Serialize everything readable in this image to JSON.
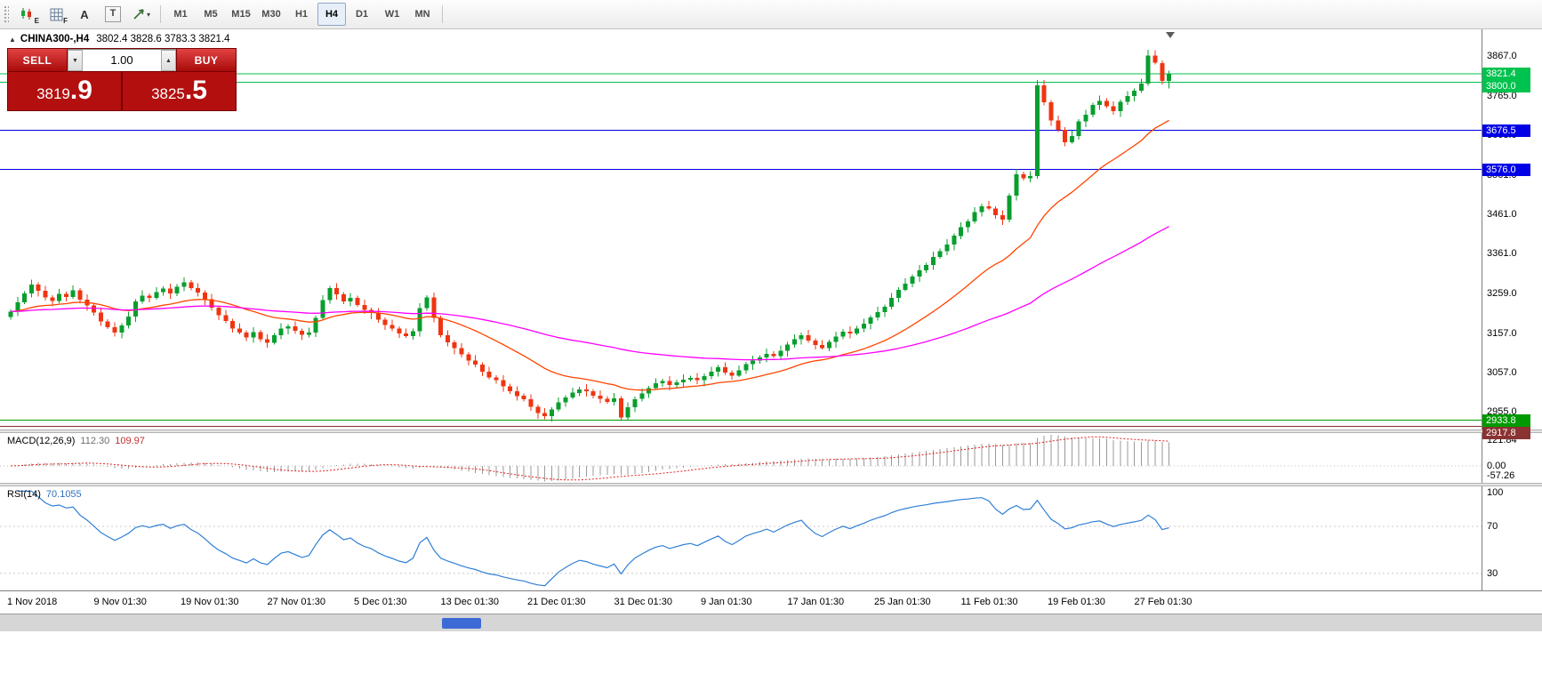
{
  "toolbar": {
    "tools": [
      {
        "name": "candles-tool",
        "badge": "E"
      },
      {
        "name": "grid-tool",
        "badge": "F"
      },
      {
        "name": "font-tool",
        "label": "A"
      },
      {
        "name": "text-tool",
        "label": "T"
      },
      {
        "name": "cursor-tool"
      }
    ],
    "timeframes": [
      {
        "label": "M1"
      },
      {
        "label": "M5"
      },
      {
        "label": "M15"
      },
      {
        "label": "M30"
      },
      {
        "label": "H1"
      },
      {
        "label": "H4",
        "selected": true
      },
      {
        "label": "D1"
      },
      {
        "label": "W1"
      },
      {
        "label": "MN"
      }
    ]
  },
  "icons": {
    "one_click_toggle": "▲",
    "vol_down": "▼",
    "vol_up": "▲",
    "cursor_caret": "▾"
  },
  "symbol_line": {
    "symbol": "CHINA300-,H4",
    "ohlc": "3802.4 3828.6 3783.3 3821.4"
  },
  "one_click": {
    "sell_label": "SELL",
    "buy_label": "BUY",
    "volume": "1.00",
    "sell_price": {
      "main": "3819",
      "big": ".9"
    },
    "buy_price": {
      "main": "3825",
      "big": ".5"
    }
  },
  "price_axis": {
    "labels": [
      {
        "text": "3867.0",
        "price": 3867.0
      },
      {
        "text": "3765.0",
        "price": 3765.0
      },
      {
        "text": "3663.0",
        "price": 3663.0
      },
      {
        "text": "3561.0",
        "price": 3561.0
      },
      {
        "text": "3461.0",
        "price": 3461.0
      },
      {
        "text": "3361.0",
        "price": 3361.0
      },
      {
        "text": "3259.0",
        "price": 3259.0
      },
      {
        "text": "3157.0",
        "price": 3157.0
      },
      {
        "text": "3057.0",
        "price": 3057.0
      },
      {
        "text": "2955.0",
        "price": 2955.0
      }
    ]
  },
  "macd_panel": {
    "title": "MACD(12,26,9)",
    "value_main": "112.30",
    "value_signal": "109.97",
    "axis_top": "121.84",
    "axis_zero": "0.00",
    "axis_bottom": "-57.26"
  },
  "rsi_panel": {
    "title": "RSI(14)",
    "value": "70.1055",
    "axis": [
      100,
      70,
      30
    ]
  },
  "chart_data": {
    "type": "candlestick",
    "title": "CHINA300-,H4",
    "symbol": "CHINA300-",
    "period": "H4",
    "last_ohlc": {
      "open": 3802.4,
      "high": 3828.6,
      "low": 3783.3,
      "close": 3821.4
    },
    "ylim": [
      2910,
      3935
    ],
    "x_labels": [
      "1 Nov 2018",
      "9 Nov 01:30",
      "19 Nov 01:30",
      "27 Nov 01:30",
      "5 Dec 01:30",
      "13 Dec 01:30",
      "21 Dec 01:30",
      "31 Dec 01:30",
      "9 Jan 01:30",
      "17 Jan 01:30",
      "25 Jan 01:30",
      "11 Feb 01:30",
      "19 Feb 01:30",
      "27 Feb 01:30"
    ],
    "open_first": 3198,
    "closes": [
      3212,
      3236,
      3258,
      3281,
      3265,
      3248,
      3239,
      3257,
      3249,
      3266,
      3243,
      3228,
      3209,
      3187,
      3172,
      3158,
      3176,
      3199,
      3238,
      3253,
      3247,
      3262,
      3271,
      3259,
      3276,
      3287,
      3272,
      3261,
      3244,
      3222,
      3203,
      3188,
      3169,
      3158,
      3146,
      3159,
      3141,
      3132,
      3151,
      3169,
      3174,
      3163,
      3152,
      3158,
      3196,
      3241,
      3272,
      3256,
      3238,
      3247,
      3229,
      3216,
      3208,
      3191,
      3178,
      3168,
      3156,
      3149,
      3162,
      3221,
      3248,
      3196,
      3151,
      3133,
      3118,
      3102,
      3087,
      3076,
      3058,
      3043,
      3036,
      3021,
      3008,
      2996,
      2987,
      2968,
      2952,
      2944,
      2961,
      2979,
      2992,
      3004,
      3013,
      3008,
      2997,
      2989,
      2981,
      2990,
      2941,
      2967,
      2988,
      3002,
      3016,
      3028,
      3034,
      3024,
      3031,
      3038,
      3042,
      3036,
      3047,
      3058,
      3069,
      3056,
      3048,
      3061,
      3077,
      3086,
      3094,
      3104,
      3098,
      3112,
      3128,
      3141,
      3152,
      3138,
      3126,
      3119,
      3134,
      3148,
      3161,
      3156,
      3169,
      3181,
      3197,
      3211,
      3224,
      3247,
      3268,
      3284,
      3302,
      3318,
      3331,
      3352,
      3367,
      3384,
      3406,
      3428,
      3443,
      3467,
      3482,
      3476,
      3459,
      3448,
      3509,
      3564,
      3553,
      3559,
      3792,
      3748,
      3701,
      3678,
      3646,
      3662,
      3699,
      3716,
      3741,
      3752,
      3738,
      3726,
      3749,
      3764,
      3778,
      3796,
      3868,
      3849,
      3803,
      3821.4
    ],
    "special_candles": {
      "88": [
        2990,
        2995,
        2933.5,
        2941
      ],
      "148": [
        3559,
        3805,
        3552,
        3792
      ],
      "164": [
        3796,
        3883,
        3790,
        3868
      ],
      "167": [
        3802.4,
        3828.6,
        3783.3,
        3821.4
      ]
    },
    "up_color": "#089E2E",
    "down_color": "#EF3511",
    "levels": [
      {
        "price": 3821.4,
        "label": "3821.4",
        "color": "#00C24E"
      },
      {
        "price": 3800.0,
        "label": "3800.0",
        "color": "#00C24E"
      },
      {
        "price": 3676.5,
        "label": "3676.5",
        "color": "#0000E6"
      },
      {
        "price": 3576.0,
        "label": "3576.0",
        "color": "#0000E6"
      },
      {
        "price": 2933.8,
        "label": "2933.8",
        "color": "#009A00"
      },
      {
        "price": 2917.8,
        "label": "2917.8",
        "color": "#8B3333"
      }
    ],
    "ma_fast": {
      "type": "ema",
      "period": 24,
      "color": "#FF4500"
    },
    "ma_slow": {
      "type": "ema",
      "period": 85,
      "color": "#FF00FF"
    },
    "macd": {
      "fast": 12,
      "slow": 26,
      "signal_period": 9,
      "hist_color": "#9a9a9a",
      "signal_color": "#E02020",
      "current_main": 112.3,
      "current_signal": 109.97,
      "range": [
        -57.26,
        121.84
      ]
    },
    "rsi": {
      "period": 14,
      "current": 70.1055,
      "color": "#2F7FD6",
      "levels": [
        70,
        30
      ]
    }
  }
}
